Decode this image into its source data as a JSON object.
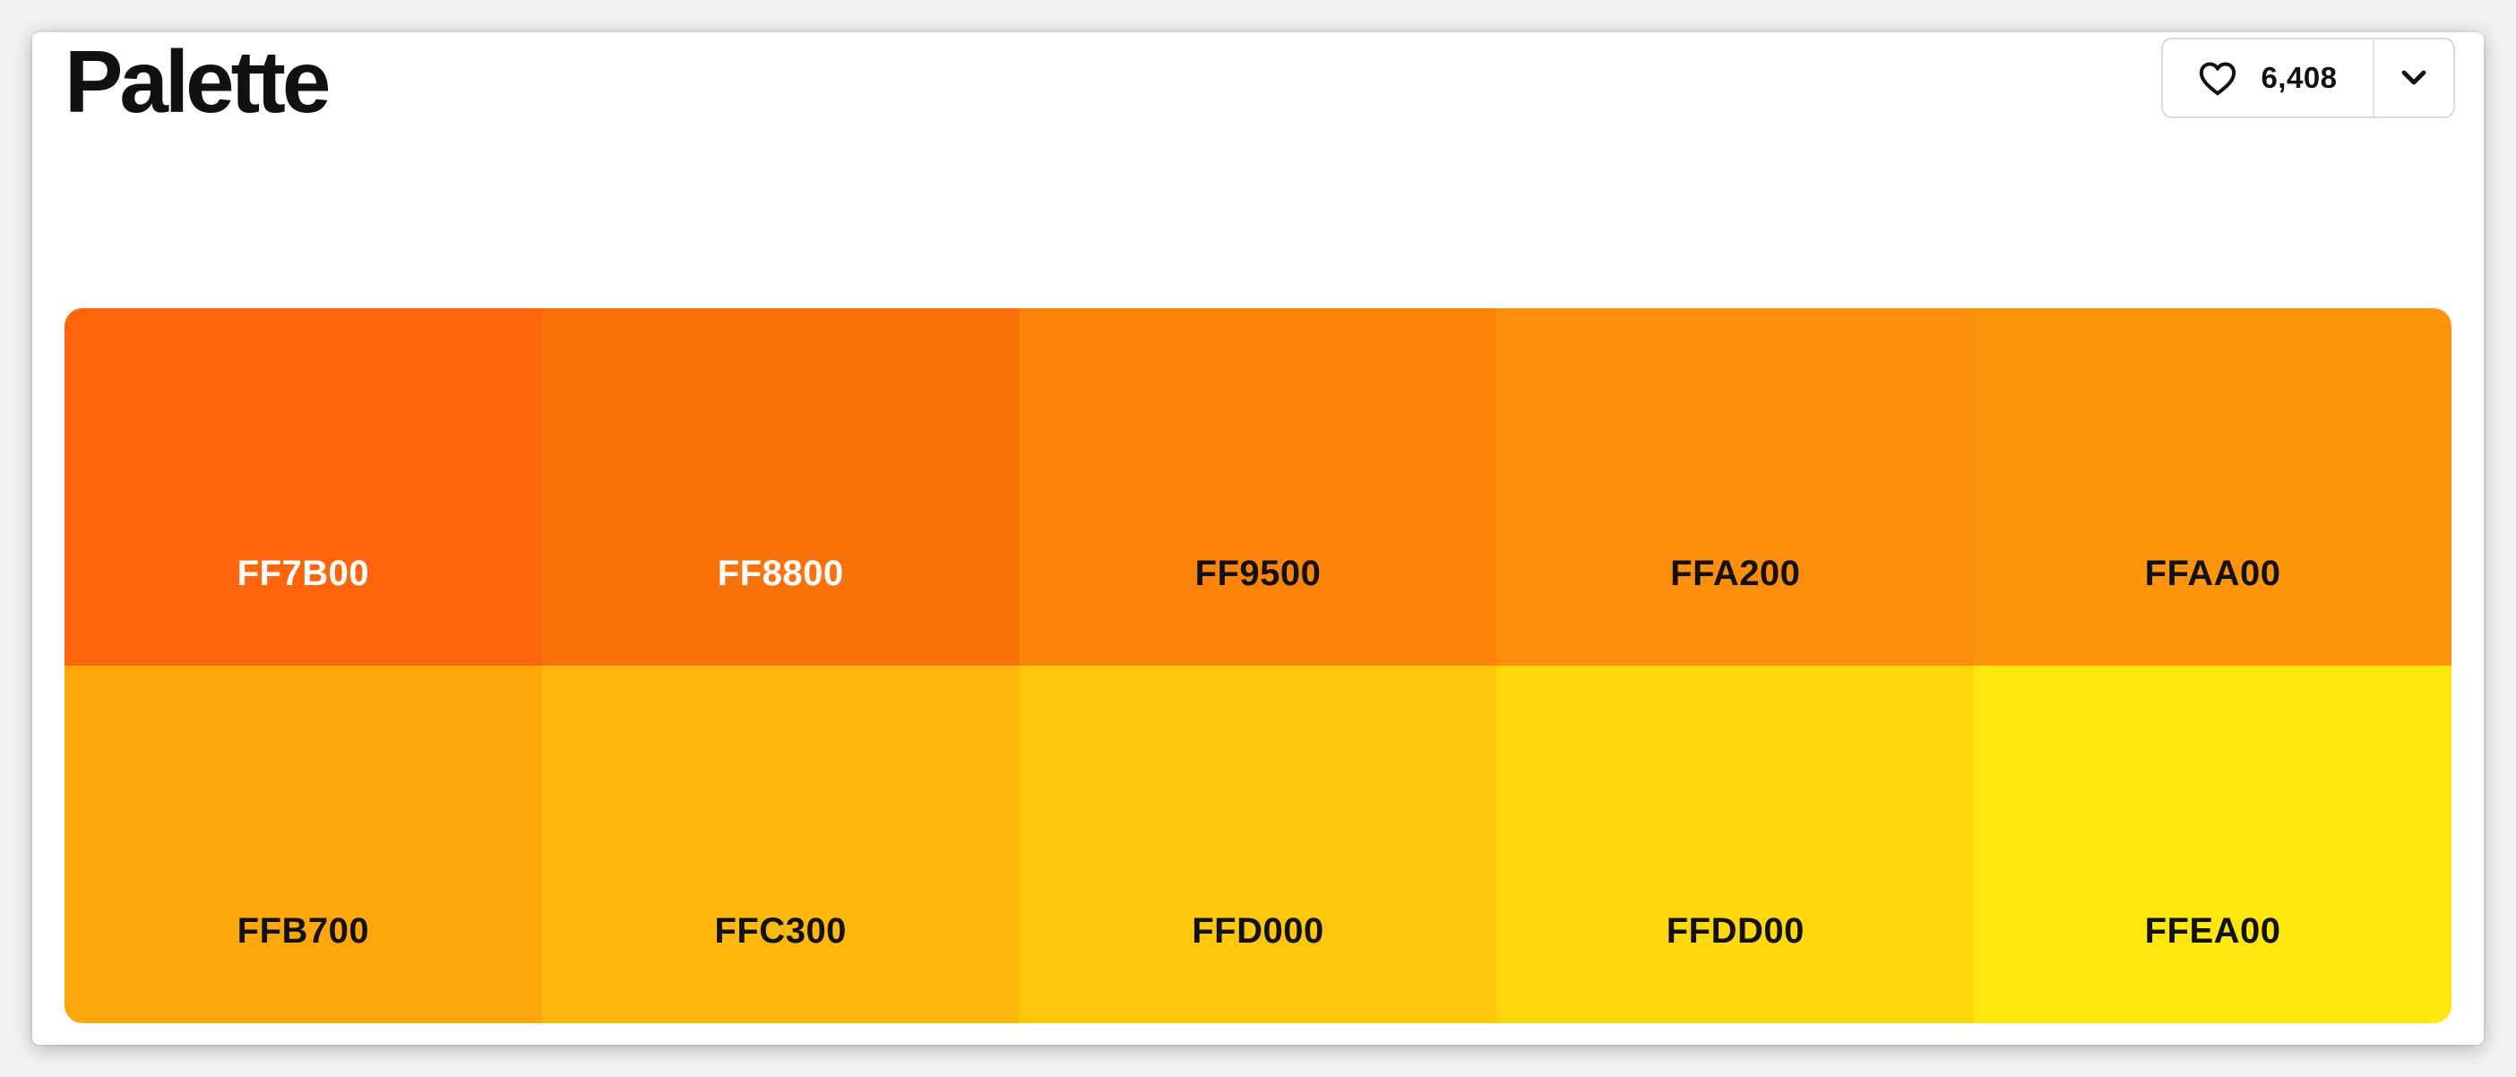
{
  "header": {
    "title": "Palette"
  },
  "favorite": {
    "count": "6,408",
    "icon": "heart-icon",
    "menu_icon": "chevron-down-icon"
  },
  "palette": {
    "swatches": [
      {
        "hex": "FF7B00",
        "color": "#FF650C",
        "text_color": "#ffffff"
      },
      {
        "hex": "FF8800",
        "color": "#FB720A",
        "text_color": "#ffffff"
      },
      {
        "hex": "FF9500",
        "color": "#FD8309",
        "text_color": "#111111"
      },
      {
        "hex": "FFA200",
        "color": "#FD8E0B",
        "text_color": "#111111"
      },
      {
        "hex": "FFAA00",
        "color": "#FD940B",
        "text_color": "#111111"
      },
      {
        "hex": "FFB700",
        "color": "#FEA70A",
        "text_color": "#111111"
      },
      {
        "hex": "FFC300",
        "color": "#FEB80B",
        "text_color": "#111111"
      },
      {
        "hex": "FFD000",
        "color": "#FEC70C",
        "text_color": "#111111"
      },
      {
        "hex": "FFDD00",
        "color": "#FED80C",
        "text_color": "#111111"
      },
      {
        "hex": "FFEA00",
        "color": "#FEE70A",
        "text_color": "#111111"
      }
    ]
  }
}
